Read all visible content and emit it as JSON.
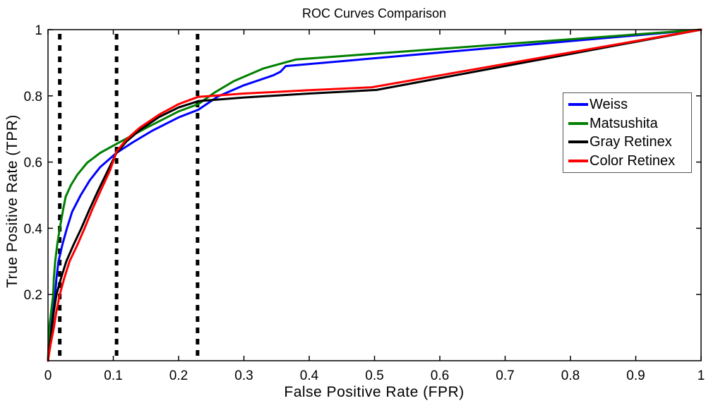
{
  "chart_data": {
    "type": "line",
    "title": "ROC Curves Comparison",
    "xlabel": "False Positive Rate (FPR)",
    "ylabel": "True Positive Rate (TPR)",
    "xlim": [
      0,
      1
    ],
    "ylim": [
      0,
      1
    ],
    "xticks": [
      0,
      0.1,
      0.2,
      0.3,
      0.4,
      0.5,
      0.6,
      0.7,
      0.8,
      0.9,
      1
    ],
    "xtick_labels": [
      "0",
      "0.1",
      "0.2",
      "0.3",
      "0.4",
      "0.5",
      "0.6",
      "0.7",
      "0.8",
      "0.9",
      "1"
    ],
    "yticks": [
      0.2,
      0.4,
      0.6,
      0.8,
      1
    ],
    "ytick_labels": [
      "0.2",
      "0.4",
      "0.6",
      "0.8",
      "1"
    ],
    "grid": false,
    "background_color": "#ffffff",
    "axis_color": "#000000",
    "legend_position": "right-center",
    "threshold_lines": {
      "style": "dashed",
      "color": "#000000",
      "x_values": [
        0.018,
        0.105,
        0.229
      ]
    },
    "series": [
      {
        "name": "Weiss",
        "color": "#0000ff",
        "points": [
          [
            0,
            0
          ],
          [
            0.002,
            0.05
          ],
          [
            0.004,
            0.1
          ],
          [
            0.007,
            0.15
          ],
          [
            0.011,
            0.2
          ],
          [
            0.013,
            0.25
          ],
          [
            0.016,
            0.3
          ],
          [
            0.022,
            0.35
          ],
          [
            0.029,
            0.4
          ],
          [
            0.037,
            0.45
          ],
          [
            0.05,
            0.5
          ],
          [
            0.064,
            0.545
          ],
          [
            0.08,
            0.585
          ],
          [
            0.105,
            0.628
          ],
          [
            0.13,
            0.66
          ],
          [
            0.16,
            0.695
          ],
          [
            0.2,
            0.735
          ],
          [
            0.23,
            0.758
          ],
          [
            0.26,
            0.798
          ],
          [
            0.3,
            0.832
          ],
          [
            0.345,
            0.862
          ],
          [
            0.356,
            0.873
          ],
          [
            0.364,
            0.89
          ],
          [
            1,
            1
          ]
        ]
      },
      {
        "name": "Matsushita",
        "color": "#007f00",
        "points": [
          [
            0,
            0
          ],
          [
            0.001,
            0.05
          ],
          [
            0.002,
            0.1
          ],
          [
            0.005,
            0.15
          ],
          [
            0.008,
            0.2
          ],
          [
            0.009,
            0.25
          ],
          [
            0.011,
            0.3
          ],
          [
            0.014,
            0.35
          ],
          [
            0.018,
            0.4
          ],
          [
            0.023,
            0.455
          ],
          [
            0.027,
            0.495
          ],
          [
            0.035,
            0.53
          ],
          [
            0.045,
            0.562
          ],
          [
            0.06,
            0.598
          ],
          [
            0.08,
            0.628
          ],
          [
            0.105,
            0.655
          ],
          [
            0.15,
            0.703
          ],
          [
            0.2,
            0.753
          ],
          [
            0.23,
            0.775
          ],
          [
            0.255,
            0.81
          ],
          [
            0.285,
            0.845
          ],
          [
            0.33,
            0.883
          ],
          [
            0.38,
            0.91
          ],
          [
            1,
            1
          ]
        ]
      },
      {
        "name": "Gray Retinex",
        "color": "#000000",
        "points": [
          [
            0,
            0
          ],
          [
            0.003,
            0.05
          ],
          [
            0.006,
            0.1
          ],
          [
            0.009,
            0.15
          ],
          [
            0.013,
            0.2
          ],
          [
            0.02,
            0.25
          ],
          [
            0.028,
            0.3
          ],
          [
            0.039,
            0.35
          ],
          [
            0.051,
            0.4
          ],
          [
            0.063,
            0.455
          ],
          [
            0.077,
            0.515
          ],
          [
            0.09,
            0.568
          ],
          [
            0.105,
            0.628
          ],
          [
            0.12,
            0.662
          ],
          [
            0.14,
            0.696
          ],
          [
            0.17,
            0.736
          ],
          [
            0.2,
            0.765
          ],
          [
            0.23,
            0.784
          ],
          [
            0.3,
            0.795
          ],
          [
            0.4,
            0.807
          ],
          [
            0.503,
            0.818
          ],
          [
            1,
            1
          ]
        ]
      },
      {
        "name": "Color Retinex",
        "color": "#ff0000",
        "points": [
          [
            0,
            0
          ],
          [
            0.004,
            0.05
          ],
          [
            0.009,
            0.1
          ],
          [
            0.013,
            0.15
          ],
          [
            0.018,
            0.2
          ],
          [
            0.025,
            0.25
          ],
          [
            0.033,
            0.3
          ],
          [
            0.045,
            0.35
          ],
          [
            0.056,
            0.4
          ],
          [
            0.068,
            0.458
          ],
          [
            0.082,
            0.52
          ],
          [
            0.095,
            0.575
          ],
          [
            0.105,
            0.632
          ],
          [
            0.12,
            0.668
          ],
          [
            0.14,
            0.703
          ],
          [
            0.17,
            0.743
          ],
          [
            0.2,
            0.775
          ],
          [
            0.23,
            0.797
          ],
          [
            0.3,
            0.807
          ],
          [
            0.4,
            0.817
          ],
          [
            0.496,
            0.826
          ],
          [
            1,
            1
          ]
        ]
      }
    ]
  }
}
